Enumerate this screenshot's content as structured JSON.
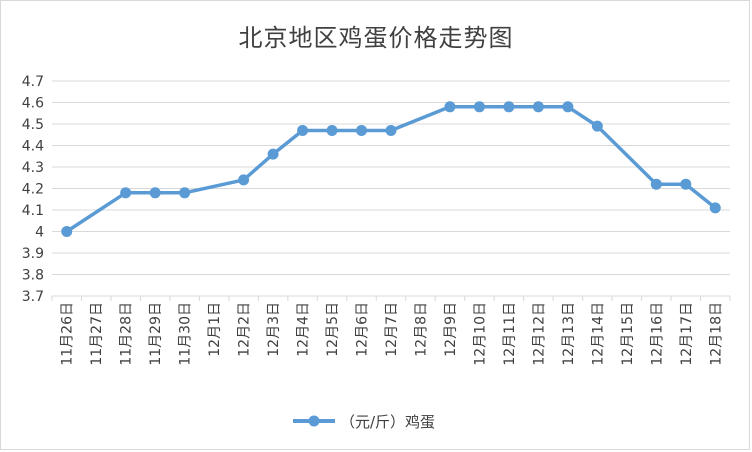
{
  "chart_data": {
    "type": "line",
    "title": "北京地区鸡蛋价格走势图",
    "categories": [
      "11月26日",
      "11月27日",
      "11月28日",
      "11月29日",
      "11月30日",
      "12月1日",
      "12月2日",
      "12月3日",
      "12月4日",
      "12月5日",
      "12月6日",
      "12月7日",
      "12月8日",
      "12月9日",
      "12月10日",
      "12月11日",
      "12月12日",
      "12月13日",
      "12月14日",
      "12月15日",
      "12月16日",
      "12月17日",
      "12月18日"
    ],
    "series": [
      {
        "name": "（元/斤）鸡蛋",
        "values": [
          4.0,
          null,
          4.18,
          4.18,
          4.18,
          null,
          4.24,
          4.36,
          4.47,
          4.47,
          4.47,
          4.47,
          null,
          4.58,
          4.58,
          4.58,
          4.58,
          4.58,
          4.49,
          null,
          4.22,
          4.22,
          4.11
        ]
      }
    ],
    "yticks": [
      "3.7",
      "3.8",
      "3.9",
      "4",
      "4.1",
      "4.2",
      "4.3",
      "4.4",
      "4.5",
      "4.6",
      "4.7"
    ],
    "ylim": [
      3.7,
      4.7
    ],
    "grid": true,
    "legend": "bottom",
    "color": "#5b9bd5"
  }
}
